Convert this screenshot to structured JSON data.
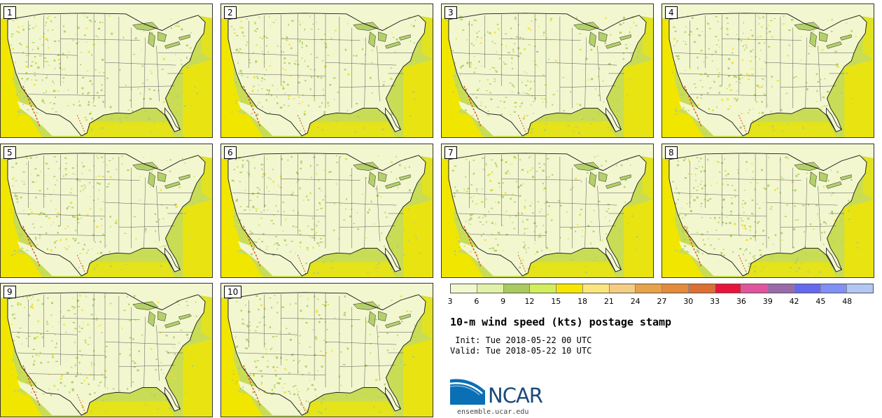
{
  "panels": [
    "1",
    "2",
    "3",
    "4",
    "5",
    "6",
    "7",
    "8",
    "9",
    "10"
  ],
  "legend": {
    "colors": [
      "#f2f7d0",
      "#e2f1a8",
      "#a9cb5e",
      "#d3ee5c",
      "#f7e600",
      "#fbe67e",
      "#f5cd82",
      "#e8a24a",
      "#e38b3a",
      "#de6f32",
      "#e8143c",
      "#df549c",
      "#9b6aa8",
      "#6469f0",
      "#8090f5",
      "#b3c6f4"
    ],
    "ticks": [
      "3",
      "6",
      "9",
      "12",
      "15",
      "18",
      "21",
      "24",
      "27",
      "30",
      "33",
      "36",
      "39",
      "42",
      "45",
      "48"
    ]
  },
  "title": "10-m wind speed (kts) postage stamp",
  "init": " Init: Tue 2018-05-22 00 UTC",
  "valid": "Valid: Tue 2018-05-22 10 UTC",
  "logo": {
    "name": "ncar-logo",
    "text": "NCAR",
    "url": "ensemble.ucar.edu"
  },
  "map_colors": {
    "land": "#f2f7d0",
    "speckle": "#b4d06a",
    "yellow": "#f1e230",
    "ocean_near": "#c9dc55",
    "ocean_far": "#f1e600",
    "red": "#d94f2a"
  }
}
